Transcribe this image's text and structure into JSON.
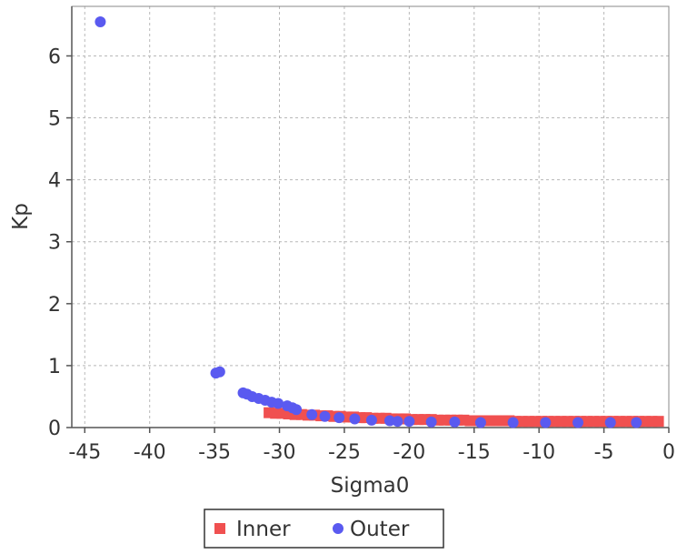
{
  "chart_data": {
    "type": "scatter",
    "title": "",
    "xlabel": "Sigma0",
    "ylabel": "Kp",
    "xlim": [
      -46,
      0
    ],
    "ylim": [
      0,
      6.8
    ],
    "xticks": [
      -45,
      -40,
      -35,
      -30,
      -25,
      -20,
      -15,
      -10,
      -5,
      0
    ],
    "yticks": [
      0,
      1,
      2,
      3,
      4,
      5,
      6
    ],
    "grid": true,
    "legend_position": "bottom",
    "series": [
      {
        "name": "Inner",
        "marker": "square",
        "color": "#f05050",
        "points": [
          [
            -30.8,
            0.24
          ],
          [
            -30.3,
            0.23
          ],
          [
            -29.8,
            0.23
          ],
          [
            -29.3,
            0.22
          ],
          [
            -28.8,
            0.21
          ],
          [
            -28.3,
            0.21
          ],
          [
            -27.8,
            0.2
          ],
          [
            -27.3,
            0.2
          ],
          [
            -26.8,
            0.19
          ],
          [
            -26.3,
            0.19
          ],
          [
            -25.8,
            0.18
          ],
          [
            -25.3,
            0.18
          ],
          [
            -24.8,
            0.17
          ],
          [
            -24.3,
            0.17
          ],
          [
            -23.8,
            0.16
          ],
          [
            -23.3,
            0.16
          ],
          [
            -22.8,
            0.15
          ],
          [
            -22.3,
            0.15
          ],
          [
            -21.8,
            0.15
          ],
          [
            -21.3,
            0.14
          ],
          [
            -20.8,
            0.14
          ],
          [
            -20.3,
            0.14
          ],
          [
            -19.8,
            0.13
          ],
          [
            -19.3,
            0.13
          ],
          [
            -18.8,
            0.13
          ],
          [
            -18.3,
            0.13
          ],
          [
            -17.8,
            0.12
          ],
          [
            -17.3,
            0.12
          ],
          [
            -16.8,
            0.12
          ],
          [
            -16.3,
            0.12
          ],
          [
            -15.8,
            0.12
          ],
          [
            -15.3,
            0.11
          ],
          [
            -14.8,
            0.11
          ],
          [
            -14.3,
            0.11
          ],
          [
            -13.8,
            0.11
          ],
          [
            -13.3,
            0.11
          ],
          [
            -12.8,
            0.11
          ],
          [
            -12.3,
            0.11
          ],
          [
            -11.8,
            0.1
          ],
          [
            -11.3,
            0.1
          ],
          [
            -10.8,
            0.1
          ],
          [
            -10.3,
            0.1
          ],
          [
            -9.8,
            0.1
          ],
          [
            -9.3,
            0.1
          ],
          [
            -8.8,
            0.1
          ],
          [
            -8.3,
            0.1
          ],
          [
            -7.8,
            0.1
          ],
          [
            -7.3,
            0.1
          ],
          [
            -6.8,
            0.1
          ],
          [
            -6.3,
            0.1
          ],
          [
            -5.8,
            0.1
          ],
          [
            -5.3,
            0.1
          ],
          [
            -4.8,
            0.1
          ],
          [
            -4.3,
            0.1
          ],
          [
            -3.8,
            0.1
          ],
          [
            -3.3,
            0.1
          ],
          [
            -2.8,
            0.1
          ],
          [
            -2.3,
            0.1
          ],
          [
            -1.8,
            0.1
          ],
          [
            -1.3,
            0.1
          ],
          [
            -0.8,
            0.1
          ]
        ]
      },
      {
        "name": "Outer",
        "marker": "circle",
        "color": "#5a5af0",
        "points": [
          [
            -43.8,
            6.55
          ],
          [
            -34.9,
            0.88
          ],
          [
            -34.6,
            0.9
          ],
          [
            -32.8,
            0.56
          ],
          [
            -32.5,
            0.54
          ],
          [
            -32.1,
            0.5
          ],
          [
            -31.6,
            0.47
          ],
          [
            -31.1,
            0.44
          ],
          [
            -30.6,
            0.41
          ],
          [
            -30.1,
            0.39
          ],
          [
            -29.4,
            0.35
          ],
          [
            -29.0,
            0.32
          ],
          [
            -28.7,
            0.29
          ],
          [
            -27.5,
            0.21
          ],
          [
            -26.5,
            0.18
          ],
          [
            -25.4,
            0.16
          ],
          [
            -24.2,
            0.14
          ],
          [
            -22.9,
            0.12
          ],
          [
            -21.5,
            0.11
          ],
          [
            -20.9,
            0.1
          ],
          [
            -20.0,
            0.1
          ],
          [
            -18.3,
            0.09
          ],
          [
            -16.5,
            0.09
          ],
          [
            -14.5,
            0.08
          ],
          [
            -12.0,
            0.08
          ],
          [
            -9.5,
            0.08
          ],
          [
            -7.0,
            0.08
          ],
          [
            -4.5,
            0.08
          ],
          [
            -2.5,
            0.08
          ]
        ]
      }
    ]
  }
}
